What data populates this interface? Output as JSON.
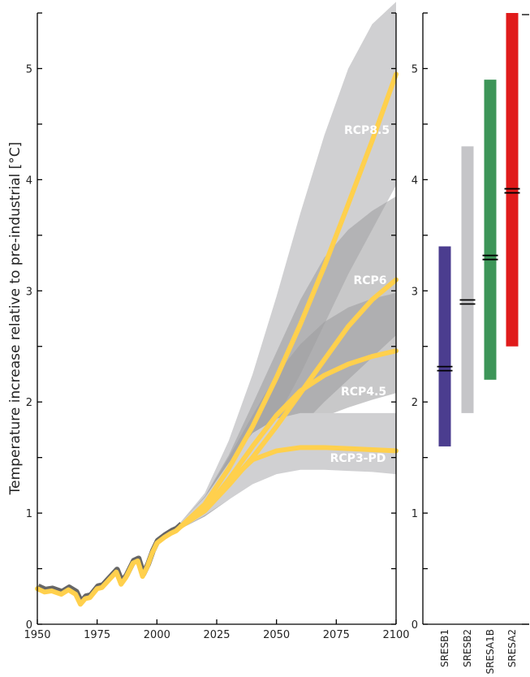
{
  "chart_data": [
    {
      "type": "line",
      "ylabel": "Temperature increase relative to pre-industrial [°C]",
      "xlim": [
        1950,
        2100
      ],
      "ylim": [
        0,
        5.5
      ],
      "x_ticks": [
        1950,
        1975,
        2000,
        2025,
        2050,
        2075,
        2100
      ],
      "y_ticks": [
        0,
        1,
        2,
        3,
        4,
        5
      ],
      "grid": false,
      "legend": "inline labels",
      "colors": {
        "line": "#ffd04d",
        "band": "#d0d0d2",
        "band_dark": "#9a9a9c",
        "hist_shadow": "#666666"
      },
      "historical": {
        "x": [
          1950,
          1953,
          1956,
          1960,
          1963,
          1966,
          1968,
          1970,
          1972,
          1975,
          1977,
          1980,
          1983,
          1985,
          1987,
          1990,
          1992,
          1994,
          1996,
          1998,
          2000,
          2003,
          2006,
          2008,
          2010
        ],
        "y": [
          0.32,
          0.29,
          0.3,
          0.27,
          0.31,
          0.27,
          0.18,
          0.23,
          0.24,
          0.32,
          0.33,
          0.4,
          0.47,
          0.36,
          0.42,
          0.55,
          0.57,
          0.43,
          0.52,
          0.64,
          0.73,
          0.78,
          0.82,
          0.84,
          0.88
        ]
      },
      "series": [
        {
          "name": "RCP8.5",
          "x": [
            2010,
            2020,
            2030,
            2040,
            2050,
            2060,
            2070,
            2080,
            2090,
            2100
          ],
          "y": [
            0.88,
            1.08,
            1.4,
            1.78,
            2.22,
            2.7,
            3.22,
            3.78,
            4.35,
            4.95
          ],
          "band_low": [
            0.86,
            1.0,
            1.2,
            1.5,
            1.85,
            2.25,
            2.7,
            3.15,
            3.55,
            3.95
          ],
          "band_high": [
            0.92,
            1.18,
            1.65,
            2.25,
            2.95,
            3.7,
            4.4,
            5.0,
            5.4,
            5.6
          ]
        },
        {
          "name": "RCP6",
          "x": [
            2010,
            2020,
            2030,
            2040,
            2050,
            2060,
            2070,
            2080,
            2090,
            2100
          ],
          "y": [
            0.88,
            1.02,
            1.25,
            1.5,
            1.78,
            2.08,
            2.38,
            2.68,
            2.92,
            3.1
          ],
          "band_low": [
            0.86,
            0.97,
            1.12,
            1.3,
            1.55,
            1.78,
            2.0,
            2.2,
            2.4,
            2.6
          ],
          "band_high": [
            0.92,
            1.15,
            1.52,
            1.98,
            2.45,
            2.92,
            3.3,
            3.55,
            3.72,
            3.85
          ]
        },
        {
          "name": "RCP4.5",
          "x": [
            2010,
            2020,
            2030,
            2040,
            2050,
            2060,
            2070,
            2080,
            2090,
            2100
          ],
          "y": [
            0.88,
            1.03,
            1.3,
            1.6,
            1.88,
            2.1,
            2.24,
            2.34,
            2.41,
            2.46
          ],
          "band_low": [
            0.86,
            0.97,
            1.12,
            1.35,
            1.58,
            1.75,
            1.87,
            1.95,
            2.02,
            2.08
          ],
          "band_high": [
            0.92,
            1.14,
            1.5,
            1.88,
            2.25,
            2.52,
            2.72,
            2.85,
            2.93,
            2.98
          ]
        },
        {
          "name": "RCP3-PD",
          "x": [
            2010,
            2020,
            2030,
            2040,
            2050,
            2060,
            2070,
            2080,
            2090,
            2100
          ],
          "y": [
            0.88,
            1.05,
            1.28,
            1.48,
            1.56,
            1.59,
            1.59,
            1.58,
            1.57,
            1.56
          ],
          "band_low": [
            0.86,
            0.98,
            1.12,
            1.26,
            1.35,
            1.39,
            1.39,
            1.38,
            1.37,
            1.35
          ],
          "band_high": [
            0.92,
            1.14,
            1.45,
            1.72,
            1.85,
            1.9,
            1.9,
            1.9,
            1.9,
            1.9
          ]
        }
      ]
    },
    {
      "type": "bar",
      "ylim": [
        0,
        5.5
      ],
      "y_ticks": [
        0,
        1,
        2,
        3,
        4,
        5
      ],
      "categories": [
        "SRESB1",
        "SRESB2",
        "SRESA1B",
        "SRESA2"
      ],
      "ranges": [
        {
          "name": "SRESB1",
          "low": 1.6,
          "high": 3.4,
          "mean": 2.3,
          "color": "#4b3d8f"
        },
        {
          "name": "SRESB2",
          "low": 1.9,
          "high": 4.3,
          "mean": 2.9,
          "color": "#c5c5c8"
        },
        {
          "name": "SRESA1B",
          "low": 2.2,
          "high": 4.9,
          "mean": 3.3,
          "color": "#3d9558"
        },
        {
          "name": "SRESA2",
          "low": 2.5,
          "high": 5.5,
          "mean": 3.9,
          "color": "#e01b1b"
        }
      ]
    }
  ]
}
